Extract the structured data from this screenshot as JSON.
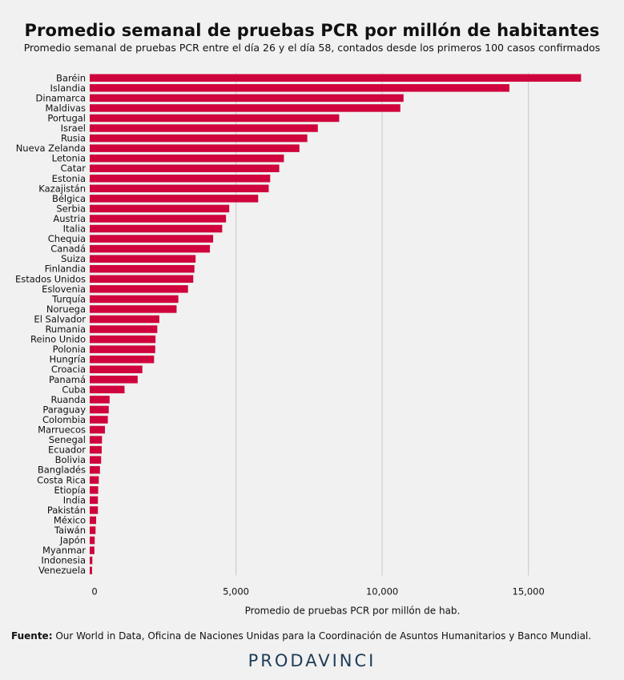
{
  "chart_data": {
    "type": "bar",
    "orientation": "horizontal",
    "title": "Promedio semanal de pruebas PCR por millón de habitantes",
    "subtitle": "Promedio semanal de pruebas PCR entre el día 26 y el día 58, contados desde los primeros 100 casos confirmados",
    "xlabel": "Promedio de pruebas PCR por millón de hab.",
    "ylabel": "",
    "xlim": [
      0,
      17200
    ],
    "xticks": [
      0,
      5000,
      10000,
      15000
    ],
    "xtick_labels": [
      "0",
      "5,000",
      "10,000",
      "15,000"
    ],
    "grid": true,
    "bar_color": "#d0043c",
    "categories": [
      "Baréin",
      "Islandia",
      "Dinamarca",
      "Maldivas",
      "Portugal",
      "Israel",
      "Rusia",
      "Nueva Zelanda",
      "Letonia",
      "Catar",
      "Estonia",
      "Kazajistán",
      "Bélgica",
      "Serbia",
      "Austria",
      "Italia",
      "Chequia",
      "Canadá",
      "Suiza",
      "Finlandia",
      "Estados Unidos",
      "Eslovenia",
      "Turquía",
      "Noruega",
      "El Salvador",
      "Rumania",
      "Reino Unido",
      "Polonia",
      "Hungría",
      "Croacia",
      "Panamá",
      "Cuba",
      "Ruanda",
      "Paraguay",
      "Colombia",
      "Marruecos",
      "Senegal",
      "Ecuador",
      "Bolivia",
      "Bangladés",
      "Costa Rica",
      "Etiopía",
      "India",
      "Pakistán",
      "México",
      "Taiwán",
      "Japón",
      "Myanmar",
      "Indonesia",
      "Venezuela"
    ],
    "values": [
      16800,
      14350,
      10730,
      10620,
      8530,
      7800,
      7440,
      7170,
      6640,
      6480,
      6170,
      6120,
      5760,
      4770,
      4660,
      4530,
      4220,
      4110,
      3620,
      3580,
      3540,
      3360,
      3030,
      2970,
      2380,
      2310,
      2250,
      2240,
      2200,
      1800,
      1640,
      1190,
      680,
      650,
      620,
      520,
      420,
      410,
      390,
      350,
      310,
      290,
      280,
      280,
      220,
      200,
      170,
      160,
      90,
      80
    ]
  },
  "source": {
    "label": "Fuente:",
    "text": " Our World in Data, Oficina de Naciones Unidas para la Coordinación de Asuntos Humanitarios y Banco Mundial."
  },
  "brand": "PRODAVINCI"
}
